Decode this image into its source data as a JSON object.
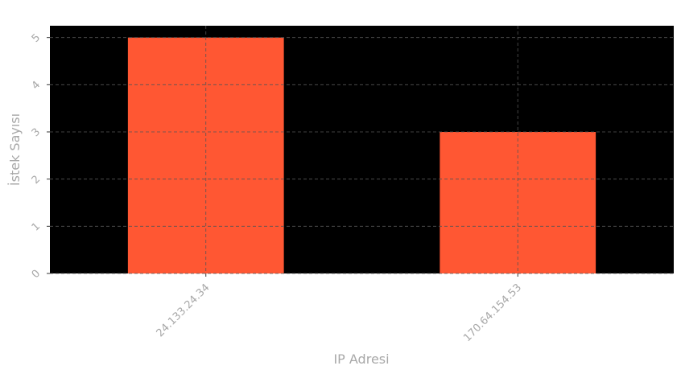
{
  "chart_data": {
    "type": "bar",
    "categories": [
      "24.133.24.34",
      "170.64.154.53"
    ],
    "values": [
      5,
      3
    ],
    "xlabel": "IP Adresi",
    "ylabel": "İstek Sayısı",
    "ylim": [
      0,
      5.25
    ],
    "yticks": [
      0,
      1,
      2,
      3,
      4,
      5
    ],
    "grid": true,
    "colors": {
      "bar": "#ff5733",
      "plot_background": "#000000",
      "grid": "#555555",
      "text": "#a8a8a8"
    }
  }
}
